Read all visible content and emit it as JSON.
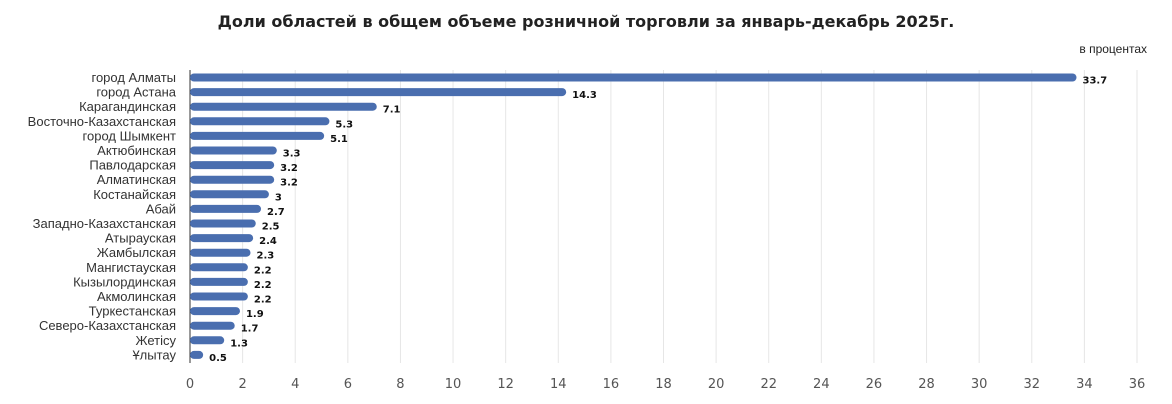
{
  "chart_data": {
    "type": "bar",
    "orientation": "horizontal",
    "title": "Доли областей в общем объеме розничной торговли за январь-декабрь 2025г.",
    "unit_label": "в процентах",
    "categories": [
      "город Алматы",
      "город Астана",
      "Карагандинская",
      "Восточно-Казахстанская",
      "город Шымкент",
      "Актюбинская",
      "Павлодарская",
      "Алматинская",
      "Костанайская",
      "Абай",
      "Западно-Казахстанская",
      "Атырауская",
      "Жамбылская",
      "Мангистауская",
      "Кызылординская",
      "Акмолинская",
      "Туркестанская",
      "Северо-Казахстанская",
      "Жетiсу",
      "Ұлытау"
    ],
    "values": [
      33.7,
      14.3,
      7.1,
      5.3,
      5.1,
      3.3,
      3.2,
      3.2,
      3,
      2.7,
      2.5,
      2.4,
      2.3,
      2.2,
      2.2,
      2.2,
      1.9,
      1.7,
      1.3,
      0.5
    ],
    "value_labels": [
      "33.7",
      "14.3",
      "7.1",
      "5.3",
      "5.1",
      "3.3",
      "3.2",
      "3.2",
      "3",
      "2.7",
      "2.5",
      "2.4",
      "2.3",
      "2.2",
      "2.2",
      "2.2",
      "1.9",
      "1.7",
      "1.3",
      "0.5"
    ],
    "xlim": [
      0,
      36
    ],
    "x_ticks": [
      0,
      2,
      4,
      6,
      8,
      10,
      12,
      14,
      16,
      18,
      20,
      22,
      24,
      26,
      28,
      30,
      32,
      34,
      36
    ],
    "grid": true,
    "bar_color": "#4a6eaf",
    "grid_color": "#e6e6e6",
    "axis_color": "#333333"
  }
}
